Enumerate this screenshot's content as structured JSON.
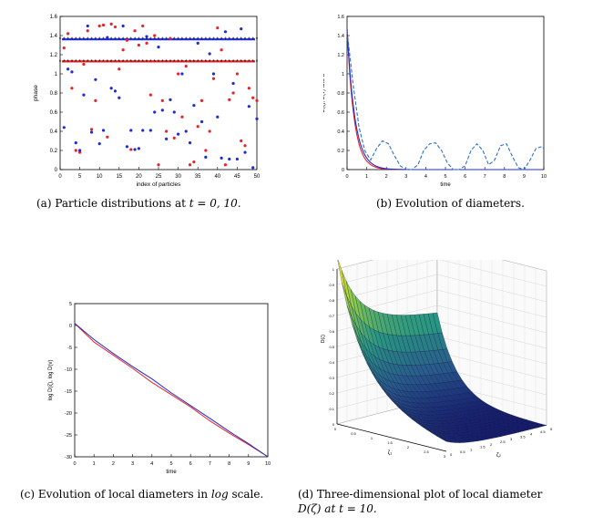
{
  "figure": {
    "caption_a_prefix": "(a) Particle distributions at ",
    "caption_a_math": "t = 0, 10.",
    "caption_b": "(b) Evolution of diameters.",
    "caption_c_prefix": "(c) Evolution of local diameters in ",
    "caption_c_math": "log",
    "caption_c_suffix": " scale.",
    "caption_d_line1": "(d) Three-dimensional plot of local diameter",
    "caption_d_line2_math": "D(ζ) at t = 10."
  },
  "colors": {
    "red": "#e8242b",
    "blue": "#1f2bd8",
    "navy": "#14196b"
  },
  "chart_data": [
    {
      "id": "a",
      "type": "scatter",
      "title": "",
      "xlabel": "index of particles",
      "ylabel": "phase",
      "xlim": [
        0,
        50
      ],
      "ylim": [
        0,
        1.6
      ],
      "xticks": [
        "0",
        "5",
        "10",
        "15",
        "20",
        "25",
        "30",
        "35",
        "40",
        "45",
        "50"
      ],
      "yticks": [
        "0",
        "0.2",
        "0.4",
        "0.6",
        "0.8",
        "1",
        "1.2",
        "1.4",
        "1.6"
      ],
      "lines": [
        {
          "name": "t=10 blue",
          "color": "#1f2bd8",
          "y": 1.36
        },
        {
          "name": "t=10 red",
          "color": "#e8242b",
          "y": 1.13
        }
      ],
      "series": [
        {
          "name": "red",
          "color": "#e8242b",
          "x": [
            1,
            2,
            3,
            4,
            5,
            6,
            7,
            8,
            9,
            10,
            11,
            12,
            13,
            14,
            15,
            16,
            17,
            18,
            19,
            20,
            21,
            22,
            23,
            24,
            25,
            26,
            27,
            28,
            29,
            30,
            31,
            32,
            33,
            34,
            35,
            36,
            37,
            38,
            39,
            40,
            41,
            42,
            43,
            44,
            45,
            46,
            47,
            48,
            49,
            50
          ],
          "y": [
            1.27,
            1.42,
            0.85,
            0.2,
            0.18,
            1.1,
            1.45,
            0.42,
            0.72,
            1.5,
            1.51,
            0.34,
            1.52,
            1.49,
            1.05,
            1.25,
            1.35,
            0.21,
            1.45,
            1.3,
            1.5,
            1.32,
            0.78,
            1.4,
            0.05,
            0.72,
            0.4,
            1.37,
            0.33,
            1.0,
            0.55,
            1.08,
            0.05,
            0.08,
            0.45,
            0.72,
            0.2,
            0.4,
            0.95,
            1.48,
            1.25,
            0.05,
            0.73,
            0.8,
            1.0,
            0.3,
            0.25,
            0.85,
            0.75,
            0.72
          ]
        },
        {
          "name": "blue",
          "color": "#1f2bd8",
          "x": [
            1,
            2,
            3,
            4,
            5,
            6,
            7,
            8,
            9,
            10,
            11,
            12,
            13,
            14,
            15,
            16,
            17,
            18,
            19,
            20,
            21,
            22,
            23,
            24,
            25,
            26,
            27,
            28,
            29,
            30,
            31,
            32,
            33,
            34,
            35,
            36,
            37,
            38,
            39,
            40,
            41,
            42,
            43,
            44,
            45,
            46,
            47,
            48,
            49,
            50
          ],
          "y": [
            0.44,
            1.05,
            1.02,
            0.28,
            0.2,
            0.78,
            1.5,
            0.39,
            0.94,
            0.27,
            0.41,
            1.38,
            0.85,
            0.82,
            0.75,
            1.5,
            0.24,
            0.41,
            0.21,
            0.22,
            0.41,
            1.39,
            0.41,
            0.6,
            1.28,
            0.62,
            0.32,
            0.73,
            0.6,
            0.37,
            1.0,
            0.4,
            0.28,
            0.67,
            1.32,
            0.5,
            0.13,
            1.21,
            1.0,
            0.55,
            0.12,
            1.44,
            0.11,
            0.9,
            0.11,
            1.47,
            0.18,
            0.66,
            0.02,
            0.53
          ]
        }
      ]
    },
    {
      "id": "b",
      "type": "line",
      "title": "",
      "xlabel": "time",
      "ylabel": "D(ζ), D(v) and D",
      "xlim": [
        0,
        10
      ],
      "ylim": [
        0,
        1.6
      ],
      "xticks": [
        "0",
        "1",
        "2",
        "3",
        "4",
        "5",
        "6",
        "7",
        "8",
        "9",
        "10"
      ],
      "yticks": [
        "0",
        "0.2",
        "0.4",
        "0.6",
        "0.8",
        "1",
        "1.2",
        "1.4",
        "1.6"
      ],
      "series": [
        {
          "name": "D(ζ)",
          "color": "#e8242b",
          "style": "solid",
          "y0": 1.47,
          "decay": 2.8
        },
        {
          "name": "D(v)",
          "color": "#1f2bd8",
          "style": "solid",
          "y0": 1.47,
          "decay": 2.5
        },
        {
          "name": "D",
          "color": "#2f6fd0",
          "style": "dashed",
          "x": [
            0,
            0.3,
            0.6,
            0.9,
            1.2,
            1.5,
            1.8,
            2.1,
            2.4,
            2.7,
            3.0,
            3.3,
            3.6,
            3.9,
            4.2,
            4.5,
            4.8,
            5.1,
            5.4,
            5.7,
            6.0,
            6.3,
            6.6,
            6.9,
            7.2,
            7.5,
            7.8,
            8.1,
            8.4,
            8.7,
            9.0,
            9.3,
            9.6,
            9.9,
            10
          ],
          "y": [
            1.45,
            0.9,
            0.45,
            0.2,
            0.1,
            0.22,
            0.3,
            0.27,
            0.15,
            0.04,
            0.0,
            0.0,
            0.05,
            0.2,
            0.27,
            0.28,
            0.2,
            0.07,
            0.0,
            0.0,
            0.04,
            0.2,
            0.27,
            0.2,
            0.05,
            0.1,
            0.25,
            0.27,
            0.14,
            0.02,
            0.0,
            0.1,
            0.22,
            0.24,
            0.22
          ]
        }
      ]
    },
    {
      "id": "c",
      "type": "line",
      "title": "",
      "xlabel": "time",
      "ylabel": "log D(ζ), log D(v)",
      "xlim": [
        0,
        10
      ],
      "ylim": [
        -30,
        5
      ],
      "xticks": [
        "0",
        "1",
        "2",
        "3",
        "4",
        "5",
        "6",
        "7",
        "8",
        "9",
        "10"
      ],
      "yticks": [
        "-30",
        "-25",
        "-20",
        "-15",
        "-10",
        "-5",
        "0",
        "5"
      ],
      "series": [
        {
          "name": "log D(ζ)",
          "color": "#e8242b",
          "x": [
            0,
            1,
            2,
            3,
            4,
            5,
            6,
            7,
            8,
            9,
            10
          ],
          "y": [
            0.5,
            -3.8,
            -6.8,
            -9.8,
            -13.0,
            -15.8,
            -18.6,
            -21.8,
            -24.6,
            -27.2,
            -30.0
          ]
        },
        {
          "name": "log D(v)",
          "color": "#1f2bd8",
          "x": [
            0,
            1,
            2,
            3,
            4,
            5,
            6,
            7,
            8,
            9,
            10
          ],
          "y": [
            0.5,
            -3.2,
            -6.4,
            -9.4,
            -12.2,
            -15.4,
            -18.3,
            -21.2,
            -24.2,
            -27.0,
            -30.0
          ]
        }
      ]
    },
    {
      "id": "d",
      "type": "surface",
      "title": "",
      "xlabel": "ζ₁",
      "ylabel": "ζ₂",
      "zlabel": "D(ζ)",
      "zlim": [
        0,
        1
      ],
      "zticks": [
        "0",
        "0.1",
        "0.2",
        "0.3",
        "0.4",
        "0.5",
        "0.6",
        "0.7",
        "0.8",
        "0.9",
        "1"
      ],
      "xticks": [
        "0",
        "0.5",
        "1",
        "1.5",
        "2",
        "2.5",
        "3"
      ],
      "yticks": [
        "0",
        "0.5",
        "1",
        "1.5",
        "2",
        "2.5",
        "3",
        "3.5",
        "4",
        "4.5",
        "5"
      ]
    }
  ]
}
